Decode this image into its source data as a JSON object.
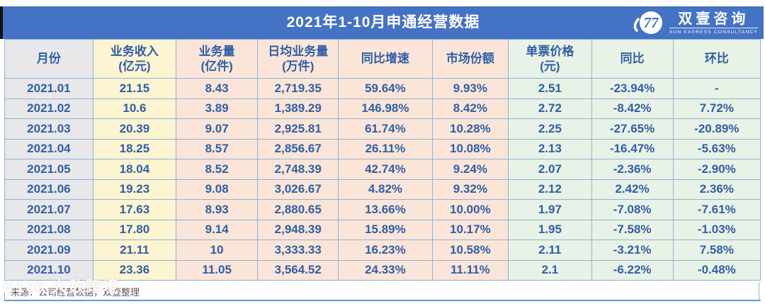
{
  "title": "2021年1-10月申通经营数据",
  "logo": {
    "icon": "swirl-double-seven-icon",
    "name_cn": "双壹咨询",
    "name_en": "SUN EXPRESS CONSULTANCY"
  },
  "table": {
    "columns": [
      {
        "label": "月份",
        "tone": "gray"
      },
      {
        "label": "业务收入\n(亿元)",
        "tone": "yellow"
      },
      {
        "label": "业务量\n(亿件)",
        "tone": "pink"
      },
      {
        "label": "日均业务量\n(万件)",
        "tone": "pink"
      },
      {
        "label": "同比增速",
        "tone": "pink"
      },
      {
        "label": "市场份额",
        "tone": "pink"
      },
      {
        "label": "单票价格\n(元)",
        "tone": "green"
      },
      {
        "label": "同比",
        "tone": "green"
      },
      {
        "label": "环比",
        "tone": "green"
      }
    ]
  },
  "chart_data": {
    "type": "table",
    "title": "2021年1-10月申通经营数据",
    "columns": [
      "月份",
      "业务收入(亿元)",
      "业务量(亿件)",
      "日均业务量(万件)",
      "同比增速",
      "市场份额",
      "单票价格(元)",
      "同比",
      "环比"
    ],
    "rows": [
      [
        "2021.01",
        "21.15",
        "8.43",
        "2,719.35",
        "59.64%",
        "9.93%",
        "2.51",
        "-23.94%",
        "-"
      ],
      [
        "2021.02",
        "10.6",
        "3.89",
        "1,389.29",
        "146.98%",
        "8.42%",
        "2.72",
        "-8.42%",
        "7.72%"
      ],
      [
        "2021.03",
        "20.39",
        "9.07",
        "2,925.81",
        "61.74%",
        "10.28%",
        "2.25",
        "-27.65%",
        "-20.89%"
      ],
      [
        "2021.04",
        "18.25",
        "8.57",
        "2,856.67",
        "26.11%",
        "10.08%",
        "2.13",
        "-16.47%",
        "-5.63%"
      ],
      [
        "2021.05",
        "18.04",
        "8.52",
        "2,748.39",
        "42.74%",
        "9.24%",
        "2.07",
        "-2.36%",
        "-2.90%"
      ],
      [
        "2021.06",
        "19.23",
        "9.08",
        "3,026.67",
        "4.82%",
        "9.32%",
        "2.12",
        "2.42%",
        "2.36%"
      ],
      [
        "2021.07",
        "17.63",
        "8.93",
        "2,880.65",
        "13.66%",
        "10.00%",
        "1.97",
        "-7.08%",
        "-7.61%"
      ],
      [
        "2021.08",
        "17.80",
        "9.14",
        "2,948.39",
        "15.89%",
        "10.17%",
        "1.95",
        "-7.58%",
        "-1.03%"
      ],
      [
        "2021.09",
        "21.11",
        "10",
        "3,333.33",
        "16.23%",
        "10.58%",
        "2.11",
        "-3.21%",
        "7.58%"
      ],
      [
        "2021.10",
        "23.36",
        "11.05",
        "3,564.52",
        "24.33%",
        "11.11%",
        "2.1",
        "-6.22%",
        "-0.48%"
      ]
    ]
  },
  "footer": {
    "source": "来源：公司经营数据，双壹整理",
    "watermark": "K100 大数跨境"
  },
  "colors": {
    "title_bar": "#4472C4",
    "text_blue": "#2F5FA8",
    "column_gray": "#E8E7EA",
    "column_yellow": "#FDF4D2",
    "column_pink": "#FBE5D8",
    "column_green": "#E9F2E6",
    "grid_border": "#8DB4D6",
    "bottom_line": "#5B9BD5"
  }
}
